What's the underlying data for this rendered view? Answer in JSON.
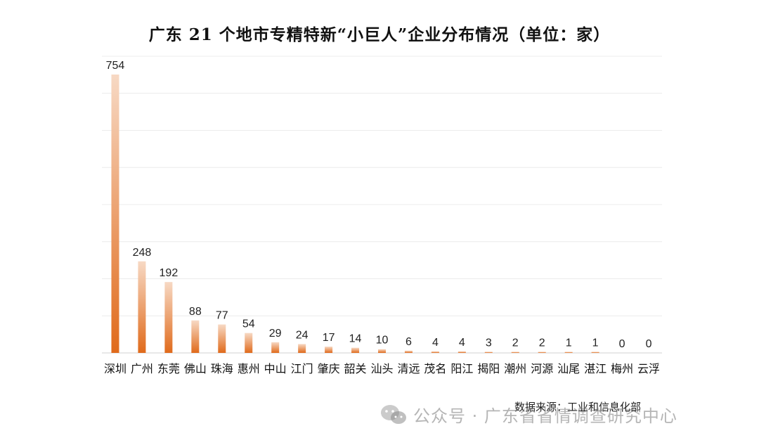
{
  "chart_data": {
    "type": "bar",
    "title": "广东 21 个地市专精特新“小巨人”企业分布情况（单位：家）",
    "categories": [
      "深圳",
      "广州",
      "东莞",
      "佛山",
      "珠海",
      "惠州",
      "中山",
      "江门",
      "肇庆",
      "韶关",
      "汕头",
      "清远",
      "茂名",
      "阳江",
      "揭阳",
      "潮州",
      "河源",
      "汕尾",
      "湛江",
      "梅州",
      "云浮"
    ],
    "values": [
      754,
      248,
      192,
      88,
      77,
      54,
      29,
      24,
      17,
      14,
      10,
      6,
      4,
      4,
      3,
      2,
      2,
      1,
      1,
      0,
      0
    ],
    "ylim": [
      0,
      754
    ],
    "grid": true,
    "bar_color_top": "#f7d9c4",
    "bar_color_bottom": "#e06a1b"
  },
  "source": "数据来源：工业和信息化部",
  "watermark": {
    "icon": "wechat-icon",
    "text": "公众号 · 广东省省情调查研究中心"
  }
}
